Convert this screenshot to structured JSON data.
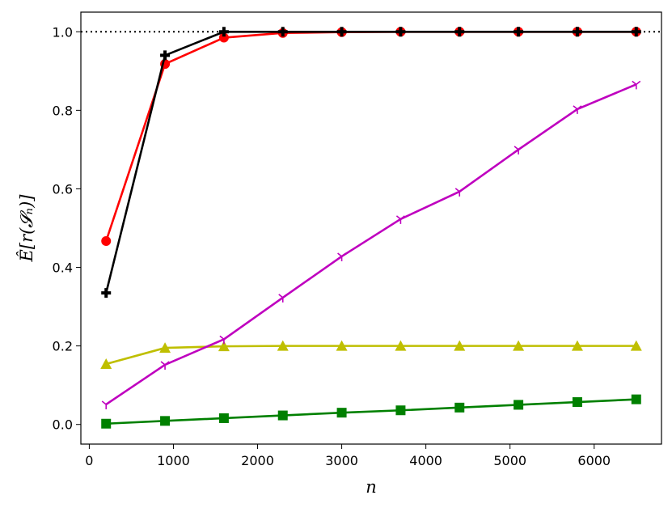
{
  "chart_data": {
    "type": "line",
    "title": "",
    "xlabel": "n",
    "ylabel": "Ê[r(𝓢ₙ)]",
    "xlim": [
      -100,
      6800
    ],
    "ylim": [
      -0.05,
      1.05
    ],
    "xticks": [
      0,
      1000,
      2000,
      3000,
      4000,
      5000,
      6000
    ],
    "yticks": [
      0.0,
      0.2,
      0.4,
      0.6,
      0.8,
      1.0
    ],
    "xtick_labels": [
      "0",
      "1000",
      "2000",
      "3000",
      "4000",
      "5000",
      "6000"
    ],
    "ytick_labels": [
      "0.0",
      "0.2",
      "0.4",
      "0.6",
      "0.8",
      "1.0"
    ],
    "grid": false,
    "x": [
      200,
      900,
      1600,
      2300,
      3000,
      3700,
      4400,
      5100,
      5800,
      6500
    ],
    "reference_line": {
      "y": 1.0,
      "style": "dotted",
      "color": "#000000"
    },
    "series": [
      {
        "color": "#008000",
        "marker": "square",
        "values": [
          0.002,
          0.009,
          0.016,
          0.023,
          0.03,
          0.036,
          0.043,
          0.05,
          0.057,
          0.064
        ]
      },
      {
        "color": "#bfbf00",
        "marker": "triangle",
        "values": [
          0.154,
          0.195,
          0.199,
          0.2,
          0.2,
          0.2,
          0.2,
          0.2,
          0.2,
          0.2
        ]
      },
      {
        "color": "#bf00bf",
        "marker": "tri_down",
        "values": [
          0.051,
          0.152,
          0.217,
          0.323,
          0.428,
          0.523,
          0.593,
          0.7,
          0.803,
          0.866
        ]
      },
      {
        "color": "#ff0000",
        "marker": "circle",
        "values": [
          0.467,
          0.918,
          0.985,
          0.997,
          0.999,
          1.0,
          1.0,
          1.0,
          1.0,
          1.0
        ]
      },
      {
        "color": "#000000",
        "marker": "plus",
        "values": [
          0.335,
          0.94,
          1.0,
          1.0,
          1.0,
          1.0,
          1.0,
          1.0,
          1.0,
          1.0
        ]
      }
    ]
  }
}
